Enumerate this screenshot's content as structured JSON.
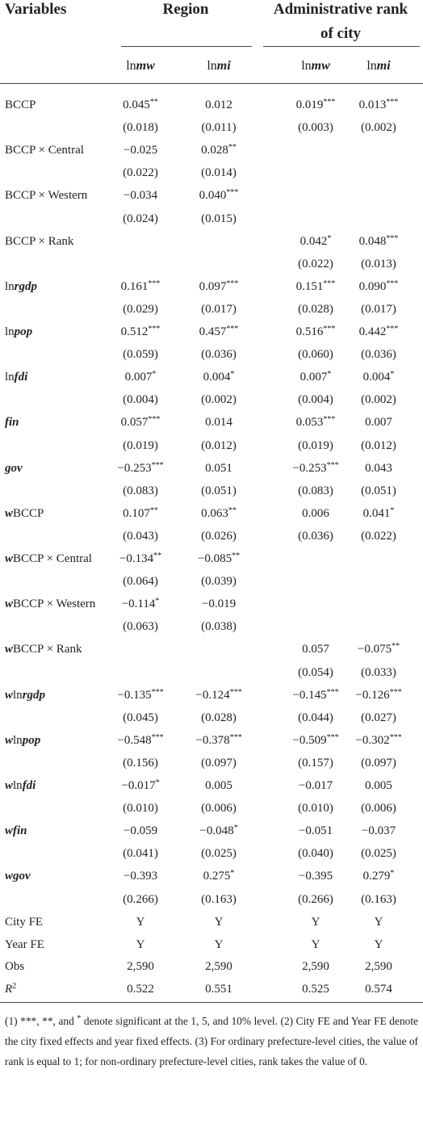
{
  "table": {
    "header": {
      "variables": "Variables",
      "groups": [
        [
          {
            "t": "Region"
          }
        ],
        [
          {
            "t": "Administrative rank"
          },
          {
            "t": "of city",
            "f": "br"
          }
        ]
      ],
      "columns": [
        [
          {
            "t": "ln"
          },
          {
            "t": "mw",
            "f": "bi"
          }
        ],
        [
          {
            "t": "ln"
          },
          {
            "t": "mi",
            "f": "bi"
          }
        ],
        [
          {
            "t": "ln"
          },
          {
            "t": "mw",
            "f": "bi"
          }
        ],
        [
          {
            "t": "ln"
          },
          {
            "t": "mi",
            "f": "bi"
          }
        ]
      ]
    },
    "rows": [
      {
        "label": [
          {
            "t": "BCCP"
          }
        ],
        "coef": [
          {
            "c": "0.045",
            "s": "**"
          },
          {
            "c": "0.012"
          },
          {
            "c": "0.019",
            "s": "***"
          },
          {
            "c": "0.013",
            "s": "***"
          }
        ],
        "se": [
          "(0.018)",
          "(0.011)",
          "(0.003)",
          "(0.002)"
        ]
      },
      {
        "label": [
          {
            "t": "BCCP × Central"
          }
        ],
        "coef": [
          {
            "c": "−0.025"
          },
          {
            "c": "0.028",
            "s": "**"
          },
          null,
          null
        ],
        "se": [
          "(0.022)",
          "(0.014)",
          null,
          null
        ]
      },
      {
        "label": [
          {
            "t": "BCCP × Western"
          }
        ],
        "coef": [
          {
            "c": "−0.034"
          },
          {
            "c": "0.040",
            "s": "***"
          },
          null,
          null
        ],
        "se": [
          "(0.024)",
          "(0.015)",
          null,
          null
        ]
      },
      {
        "label": [
          {
            "t": "BCCP × Rank"
          }
        ],
        "coef": [
          null,
          null,
          {
            "c": "0.042",
            "s": "*"
          },
          {
            "c": "0.048",
            "s": "***"
          }
        ],
        "se": [
          null,
          null,
          "(0.022)",
          "(0.013)"
        ]
      },
      {
        "label": [
          {
            "t": "ln"
          },
          {
            "t": "rgdp",
            "f": "bi"
          }
        ],
        "coef": [
          {
            "c": "0.161",
            "s": "***"
          },
          {
            "c": "0.097",
            "s": "***"
          },
          {
            "c": "0.151",
            "s": "***"
          },
          {
            "c": "0.090",
            "s": "***"
          }
        ],
        "se": [
          "(0.029)",
          "(0.017)",
          "(0.028)",
          "(0.017)"
        ]
      },
      {
        "label": [
          {
            "t": "ln"
          },
          {
            "t": "pop",
            "f": "bi"
          }
        ],
        "coef": [
          {
            "c": "0.512",
            "s": "***"
          },
          {
            "c": "0.457",
            "s": "***"
          },
          {
            "c": "0.516",
            "s": "***"
          },
          {
            "c": "0.442",
            "s": "***"
          }
        ],
        "se": [
          "(0.059)",
          "(0.036)",
          "(0.060)",
          "(0.036)"
        ]
      },
      {
        "label": [
          {
            "t": "ln"
          },
          {
            "t": "fdi",
            "f": "bi"
          }
        ],
        "coef": [
          {
            "c": "0.007",
            "s": "*"
          },
          {
            "c": "0.004",
            "s": "*"
          },
          {
            "c": "0.007",
            "s": "*"
          },
          {
            "c": "0.004",
            "s": "*"
          }
        ],
        "se": [
          "(0.004)",
          "(0.002)",
          "(0.004)",
          "(0.002)"
        ]
      },
      {
        "label": [
          {
            "t": "fin",
            "f": "bi"
          }
        ],
        "coef": [
          {
            "c": "0.057",
            "s": "***"
          },
          {
            "c": "0.014"
          },
          {
            "c": "0.053",
            "s": "***"
          },
          {
            "c": "0.007"
          }
        ],
        "se": [
          "(0.019)",
          "(0.012)",
          "(0.019)",
          "(0.012)"
        ]
      },
      {
        "label": [
          {
            "t": "gov",
            "f": "bi"
          }
        ],
        "coef": [
          {
            "c": "−0.253",
            "s": "***"
          },
          {
            "c": "0.051"
          },
          {
            "c": "−0.253",
            "s": "***"
          },
          {
            "c": "0.043"
          }
        ],
        "se": [
          "(0.083)",
          "(0.051)",
          "(0.083)",
          "(0.051)"
        ]
      },
      {
        "label": [
          {
            "t": "w",
            "f": "bi"
          },
          {
            "t": "BCCP"
          }
        ],
        "coef": [
          {
            "c": "0.107",
            "s": "**"
          },
          {
            "c": "0.063",
            "s": "**"
          },
          {
            "c": "0.006"
          },
          {
            "c": "0.041",
            "s": "*"
          }
        ],
        "se": [
          "(0.043)",
          "(0.026)",
          "(0.036)",
          "(0.022)"
        ]
      },
      {
        "label": [
          {
            "t": "w",
            "f": "bi"
          },
          {
            "t": "BCCP × Central"
          }
        ],
        "coef": [
          {
            "c": "−0.134",
            "s": "**"
          },
          {
            "c": "−0.085",
            "s": "**"
          },
          null,
          null
        ],
        "se": [
          "(0.064)",
          "(0.039)",
          null,
          null
        ]
      },
      {
        "label": [
          {
            "t": "w",
            "f": "bi"
          },
          {
            "t": "BCCP × Western"
          }
        ],
        "coef": [
          {
            "c": "−0.114",
            "s": "*"
          },
          {
            "c": "−0.019"
          },
          null,
          null
        ],
        "se": [
          "(0.063)",
          "(0.038)",
          null,
          null
        ]
      },
      {
        "label": [
          {
            "t": "w",
            "f": "bi"
          },
          {
            "t": "BCCP × Rank"
          }
        ],
        "coef": [
          null,
          null,
          {
            "c": "0.057"
          },
          {
            "c": "−0.075",
            "s": "**"
          }
        ],
        "se": [
          null,
          null,
          "(0.054)",
          "(0.033)"
        ]
      },
      {
        "label": [
          {
            "t": "w",
            "f": "bi"
          },
          {
            "t": "ln"
          },
          {
            "t": "rgdp",
            "f": "bi"
          }
        ],
        "coef": [
          {
            "c": "−0.135",
            "s": "***"
          },
          {
            "c": "−0.124",
            "s": "***"
          },
          {
            "c": "−0.145",
            "s": "***"
          },
          {
            "c": "−0.126",
            "s": "***"
          }
        ],
        "se": [
          "(0.045)",
          "(0.028)",
          "(0.044)",
          "(0.027)"
        ]
      },
      {
        "label": [
          {
            "t": "w",
            "f": "bi"
          },
          {
            "t": "ln"
          },
          {
            "t": "pop",
            "f": "bi"
          }
        ],
        "coef": [
          {
            "c": "−0.548",
            "s": "***"
          },
          {
            "c": "−0.378",
            "s": "***"
          },
          {
            "c": "−0.509",
            "s": "***"
          },
          {
            "c": "−0.302",
            "s": "***"
          }
        ],
        "se": [
          "(0.156)",
          "(0.097)",
          "(0.157)",
          "(0.097)"
        ]
      },
      {
        "label": [
          {
            "t": "w",
            "f": "bi"
          },
          {
            "t": "ln"
          },
          {
            "t": "fdi",
            "f": "bi"
          }
        ],
        "coef": [
          {
            "c": "−0.017",
            "s": "*"
          },
          {
            "c": "0.005"
          },
          {
            "c": "−0.017"
          },
          {
            "c": "0.005"
          }
        ],
        "se": [
          "(0.010)",
          "(0.006)",
          "(0.010)",
          "(0.006)"
        ]
      },
      {
        "label": [
          {
            "t": "wfin",
            "f": "bi"
          }
        ],
        "coef": [
          {
            "c": "−0.059"
          },
          {
            "c": "−0.048",
            "s": "*"
          },
          {
            "c": "−0.051"
          },
          {
            "c": "−0.037"
          }
        ],
        "se": [
          "(0.041)",
          "(0.025)",
          "(0.040)",
          "(0.025)"
        ]
      },
      {
        "label": [
          {
            "t": "wgov",
            "f": "bi"
          }
        ],
        "coef": [
          {
            "c": "−0.393"
          },
          {
            "c": "0.275",
            "s": "*"
          },
          {
            "c": "−0.395"
          },
          {
            "c": "0.279",
            "s": "*"
          }
        ],
        "se": [
          "(0.266)",
          "(0.163)",
          "(0.266)",
          "(0.163)"
        ]
      }
    ],
    "bottom_rows": [
      {
        "label": [
          {
            "t": "City FE"
          }
        ],
        "values": [
          "Y",
          "Y",
          "Y",
          "Y"
        ]
      },
      {
        "label": [
          {
            "t": "Year FE"
          }
        ],
        "values": [
          "Y",
          "Y",
          "Y",
          "Y"
        ]
      },
      {
        "label": [
          {
            "t": "Obs"
          }
        ],
        "values": [
          "2,590",
          "2,590",
          "2,590",
          "2,590"
        ]
      },
      {
        "label": [
          {
            "t": "R",
            "f": "i"
          },
          {
            "t": "2",
            "f": "sup"
          }
        ],
        "values": [
          "0.522",
          "0.551",
          "0.525",
          "0.574"
        ]
      }
    ],
    "footnote": [
      {
        "t": "(1) ***, **, and "
      },
      {
        "t": "*",
        "f": "sup"
      },
      {
        "t": " denote significant at the 1, 5, and 10% level. (2) City FE and Year FE denote the city fixed effects and year fixed effects. (3) For ordinary prefecture-level cities, the value of rank is equal to 1; for non-ordinary prefecture-level cities, rank takes the value of 0."
      }
    ]
  }
}
